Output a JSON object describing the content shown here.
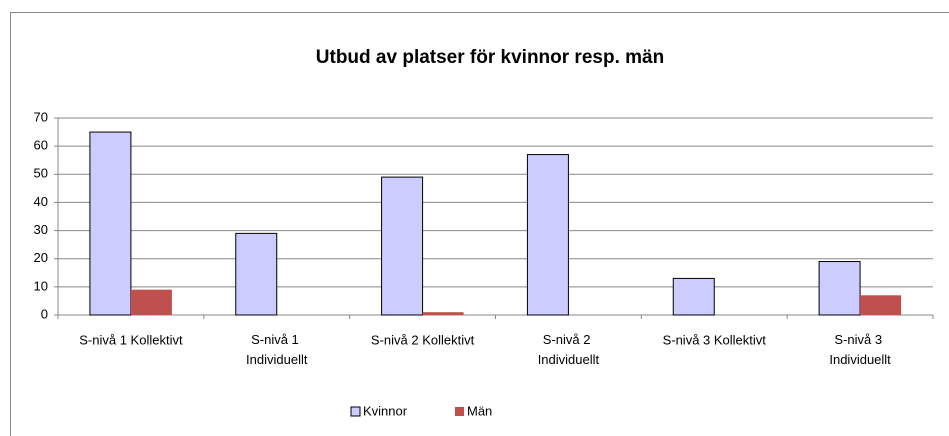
{
  "chart_data": {
    "type": "bar",
    "title": "Utbud av platser för kvinnor resp. män",
    "categories": [
      "S-nivå 1 Kollektivt",
      "S-nivå 1 Individuellt",
      "S-nivå 2 Kollektivt",
      "S-nivå 2 Individuellt",
      "S-nivå 3 Kollektivt",
      "S-nivå 3 Individuellt"
    ],
    "series": [
      {
        "name": "Kvinnor",
        "color": "#ccccff",
        "values": [
          65,
          29,
          49,
          57,
          13,
          19
        ]
      },
      {
        "name": "Män",
        "color": "#c0504d",
        "values": [
          9,
          0,
          1,
          0,
          0,
          7
        ]
      }
    ],
    "ylim": [
      0,
      70
    ],
    "yticks": [
      0,
      10,
      20,
      30,
      40,
      50,
      60,
      70
    ],
    "grid": true,
    "legend": "bottom"
  }
}
